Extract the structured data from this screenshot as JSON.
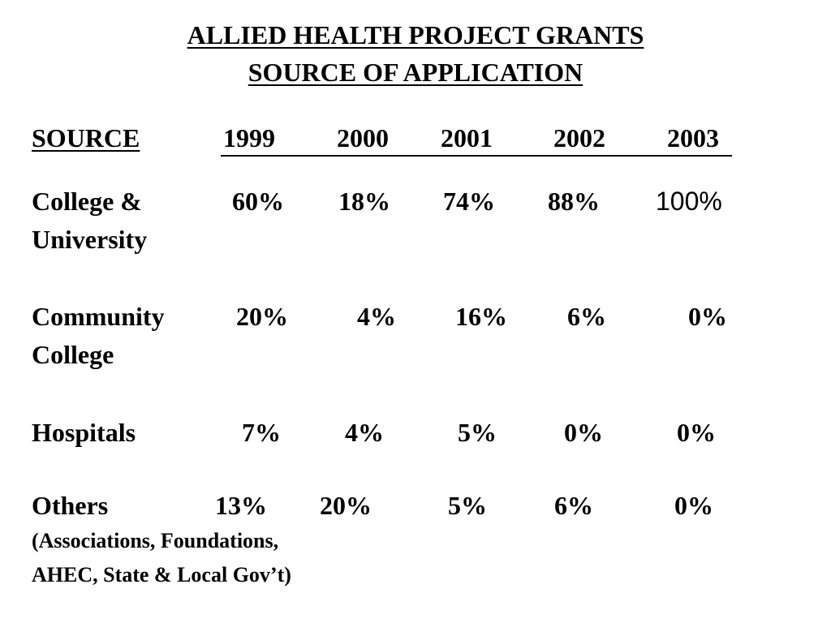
{
  "title": {
    "line1": "ALLIED  HEALTH  PROJECT  GRANTS",
    "line2": "SOURCE OF APPLICATION"
  },
  "header": {
    "source": "SOURCE",
    "years": [
      "1999",
      "2000",
      "2001",
      "2002",
      "2003"
    ]
  },
  "rows": [
    {
      "label_line1": "College &",
      "label_line2": "University",
      "values": [
        "60%",
        "18%",
        "74%",
        "88%",
        "100%"
      ]
    },
    {
      "label_line1": "Community",
      "label_line2": "College",
      "values": [
        "20%",
        "4%",
        "16%",
        "6%",
        "0%"
      ]
    },
    {
      "label_line1": "Hospitals",
      "values": [
        "7%",
        "4%",
        "5%",
        "0%",
        "0%"
      ]
    },
    {
      "label_line1": "Others",
      "note_line1": "(Associations, Foundations,",
      "note_line2": "AHEC, State & Local Gov’t)",
      "values": [
        "13%",
        "20%",
        "5%",
        "6%",
        "0%"
      ]
    }
  ]
}
